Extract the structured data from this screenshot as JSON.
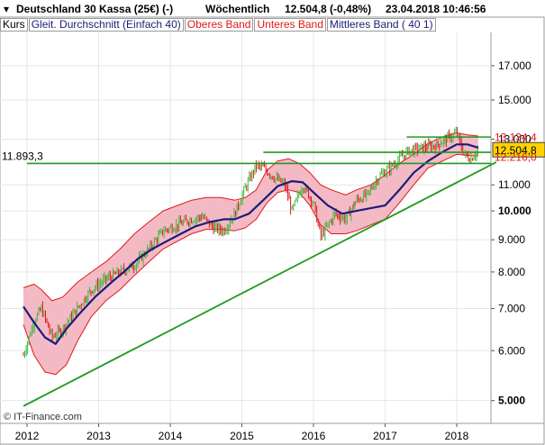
{
  "header": {
    "instrument": "Deutschland 30 Kassa (25€) (-)",
    "interval": "Wöchentlich",
    "quote": "12.504,8 (-0,48%)",
    "datetime": "23.04.2018 10:46:56"
  },
  "legend": [
    {
      "label": "Kurs",
      "color": "#000000"
    },
    {
      "label": "Gleit. Durchschnitt (Einfach 40)",
      "color": "#1c1c78"
    },
    {
      "label": "Oberes Band",
      "color": "#e01818"
    },
    {
      "label": "Unteres Band",
      "color": "#e01818"
    },
    {
      "label": "Mittleres Band ( 40 1)",
      "color": "#1c1c78"
    }
  ],
  "watermark": "© IT-Finance.com",
  "colors": {
    "band_fill": "#f2b3c0",
    "band_line": "#e01818",
    "ma_line": "#1c1c78",
    "candle_up": "#3cb83c",
    "candle_down": "#e01818",
    "trend_line": "#1e9a1e",
    "grid": "#e6e6e6",
    "current_label_bg": "#ffd200"
  },
  "chart_data": {
    "type": "line",
    "y_scale": "log",
    "ylim": [
      4600,
      19200
    ],
    "x_labels": [
      "2012",
      "2013",
      "2014",
      "2015",
      "2016",
      "2017",
      "2018"
    ],
    "y_ticks": [
      {
        "value": 5000,
        "label": "5.000",
        "bold": true
      },
      {
        "value": 6000,
        "label": "6.000",
        "bold": false
      },
      {
        "value": 7000,
        "label": "7.000",
        "bold": false
      },
      {
        "value": 8000,
        "label": "8.000",
        "bold": false
      },
      {
        "value": 9000,
        "label": "9.000",
        "bold": false
      },
      {
        "value": 10000,
        "label": "10.000",
        "bold": true
      },
      {
        "value": 11000,
        "label": "11.000",
        "bold": false
      },
      {
        "value": 13000,
        "label": "13.000",
        "bold": false
      },
      {
        "value": 15000,
        "label": "15.000",
        "bold": false
      },
      {
        "value": 17000,
        "label": "17.000",
        "bold": false
      }
    ],
    "horizontal_lines": [
      {
        "value": 11893.3,
        "label": "11.893,3",
        "start": "2012.0"
      },
      {
        "value": 12390,
        "label": "",
        "start": "2015.3"
      },
      {
        "value": 13100,
        "label": "",
        "start": "2017.3"
      }
    ],
    "trend_line": {
      "from": [
        "2011.95",
        4900
      ],
      "to": [
        "2018.55",
        11950
      ]
    },
    "right_labels": [
      {
        "value": 13134.4,
        "label": "13.134,4",
        "color": "#e01818",
        "highlight": false
      },
      {
        "value": 12504.8,
        "label": "12.504,8",
        "color": "#000000",
        "highlight": true
      },
      {
        "value": 12216.0,
        "label": "12.216,0",
        "color": "#e01818",
        "highlight": false
      }
    ],
    "series": [
      {
        "name": "Kurs",
        "x": [
          "2011.95",
          "2012.1",
          "2012.2",
          "2012.35",
          "2012.5",
          "2012.7",
          "2012.9",
          "2013.1",
          "2013.3",
          "2013.5",
          "2013.7",
          "2013.9",
          "2014.1",
          "2014.3",
          "2014.45",
          "2014.6",
          "2014.75",
          "2014.9",
          "2015.05",
          "2015.2",
          "2015.3",
          "2015.45",
          "2015.6",
          "2015.7",
          "2015.85",
          "2016.0",
          "2016.1",
          "2016.3",
          "2016.45",
          "2016.6",
          "2016.75",
          "2016.9",
          "2017.1",
          "2017.3",
          "2017.5",
          "2017.7",
          "2017.85",
          "2018.0",
          "2018.1",
          "2018.2",
          "2018.3"
        ],
        "values": [
          5900,
          6700,
          7000,
          6300,
          6500,
          7000,
          7500,
          7800,
          8000,
          8200,
          8700,
          9300,
          9500,
          9700,
          9800,
          9400,
          9300,
          9900,
          10900,
          11800,
          11700,
          11300,
          11000,
          10000,
          11000,
          10300,
          9100,
          9900,
          9700,
          10400,
          10600,
          11300,
          11800,
          12400,
          12600,
          12700,
          13000,
          13300,
          12300,
          12100,
          12500
        ]
      },
      {
        "name": "Gleit. Durchschnitt (Einfach 40)",
        "x": [
          "2011.95",
          "2012.1",
          "2012.25",
          "2012.4",
          "2012.55",
          "2012.75",
          "2012.95",
          "2013.15",
          "2013.35",
          "2013.55",
          "2013.75",
          "2013.95",
          "2014.15",
          "2014.35",
          "2014.55",
          "2014.75",
          "2014.9",
          "2015.1",
          "2015.3",
          "2015.5",
          "2015.7",
          "2015.85",
          "2016.0",
          "2016.2",
          "2016.4",
          "2016.6",
          "2016.8",
          "2017.0",
          "2017.2",
          "2017.4",
          "2017.6",
          "2017.8",
          "2018.0",
          "2018.15",
          "2018.3"
        ],
        "values": [
          7050,
          6650,
          6300,
          6150,
          6500,
          6900,
          7300,
          7650,
          8000,
          8400,
          8700,
          8950,
          9200,
          9450,
          9600,
          9700,
          9700,
          9900,
          10400,
          10950,
          11150,
          11100,
          10700,
          10200,
          9900,
          10000,
          10100,
          10200,
          10800,
          11500,
          12000,
          12400,
          12750,
          12750,
          12600
        ]
      },
      {
        "name": "Oberes Band",
        "x": [
          "2011.95",
          "2012.1",
          "2012.2",
          "2012.35",
          "2012.5",
          "2012.7",
          "2012.9",
          "2013.1",
          "2013.3",
          "2013.5",
          "2013.7",
          "2013.9",
          "2014.1",
          "2014.3",
          "2014.5",
          "2014.7",
          "2014.9",
          "2015.05",
          "2015.2",
          "2015.35",
          "2015.5",
          "2015.65",
          "2015.8",
          "2015.95",
          "2016.1",
          "2016.25",
          "2016.45",
          "2016.6",
          "2016.8",
          "2017.0",
          "2017.2",
          "2017.4",
          "2017.6",
          "2017.8",
          "2018.0",
          "2018.15",
          "2018.3"
        ],
        "values": [
          7550,
          7650,
          7500,
          7200,
          7300,
          7700,
          8000,
          8300,
          8700,
          9200,
          9600,
          10000,
          10200,
          10400,
          10500,
          10500,
          10400,
          10500,
          10800,
          11600,
          12000,
          12100,
          11900,
          11500,
          11000,
          10800,
          10600,
          10800,
          11000,
          11400,
          11900,
          12300,
          12800,
          13100,
          13300,
          13200,
          13150
        ]
      },
      {
        "name": "Unteres Band",
        "x": [
          "2011.95",
          "2012.1",
          "2012.25",
          "2012.4",
          "2012.55",
          "2012.7",
          "2012.9",
          "2013.1",
          "2013.3",
          "2013.5",
          "2013.7",
          "2013.9",
          "2014.1",
          "2014.3",
          "2014.5",
          "2014.7",
          "2014.9",
          "2015.05",
          "2015.2",
          "2015.35",
          "2015.5",
          "2015.65",
          "2015.8",
          "2015.95",
          "2016.1",
          "2016.25",
          "2016.45",
          "2016.6",
          "2016.8",
          "2017.0",
          "2017.2",
          "2017.4",
          "2017.6",
          "2017.8",
          "2018.0",
          "2018.15",
          "2018.3"
        ],
        "values": [
          6600,
          5900,
          5550,
          5500,
          5700,
          6200,
          6800,
          7200,
          7500,
          7900,
          8300,
          8700,
          8950,
          9200,
          9350,
          9350,
          9300,
          9400,
          9700,
          10300,
          10700,
          10800,
          10700,
          10200,
          9500,
          9200,
          9200,
          9300,
          9500,
          9700,
          10300,
          11000,
          11700,
          12000,
          12300,
          12250,
          12220
        ]
      }
    ]
  }
}
